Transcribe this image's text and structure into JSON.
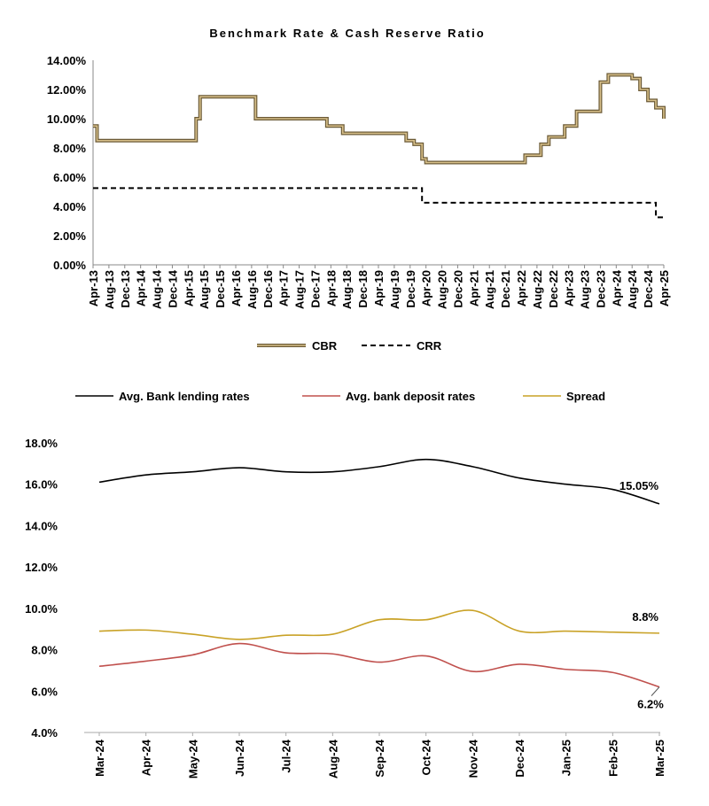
{
  "chart_data": [
    {
      "type": "line",
      "title": "Benchmark Rate & Cash Reserve Ratio",
      "y_ticks": [
        "0.00%",
        "2.00%",
        "4.00%",
        "6.00%",
        "8.00%",
        "10.00%",
        "12.00%",
        "14.00%"
      ],
      "ylim": [
        0,
        14
      ],
      "x_ticks": [
        "Apr-13",
        "Aug-13",
        "Dec-13",
        "Apr-14",
        "Aug-14",
        "Dec-14",
        "Apr-15",
        "Aug-15",
        "Dec-15",
        "Apr-16",
        "Aug-16",
        "Dec-16",
        "Apr-17",
        "Aug-17",
        "Dec-17",
        "Apr-18",
        "Aug-18",
        "Dec-18",
        "Apr-19",
        "Aug-19",
        "Dec-19",
        "Apr-20",
        "Aug-20",
        "Dec-20",
        "Apr-21",
        "Aug-21",
        "Dec-21",
        "Apr-22",
        "Aug-22",
        "Dec-22",
        "Apr-23",
        "Aug-23",
        "Dec-23",
        "Apr-24",
        "Aug-24",
        "Dec-24",
        "Apr-25"
      ],
      "legend_position": "bottom",
      "series": [
        {
          "name": "CBR",
          "color": "#a08654",
          "style": "solid",
          "steps": [
            [
              "2013-04",
              9.5
            ],
            [
              "2013-05",
              8.5
            ],
            [
              "2015-06",
              10.0
            ],
            [
              "2015-07",
              11.5
            ],
            [
              "2016-09",
              10.0
            ],
            [
              "2018-03",
              9.5
            ],
            [
              "2018-07",
              9.0
            ],
            [
              "2019-11",
              8.5
            ],
            [
              "2020-01",
              8.25
            ],
            [
              "2020-03",
              7.25
            ],
            [
              "2020-04",
              7.0
            ],
            [
              "2022-05",
              7.5
            ],
            [
              "2022-09",
              8.25
            ],
            [
              "2022-11",
              8.75
            ],
            [
              "2023-03",
              9.5
            ],
            [
              "2023-06",
              10.5
            ],
            [
              "2023-12",
              12.5
            ],
            [
              "2024-02",
              13.0
            ],
            [
              "2024-08",
              12.75
            ],
            [
              "2024-10",
              12.0
            ],
            [
              "2024-12",
              11.25
            ],
            [
              "2025-02",
              10.75
            ],
            [
              "2025-04",
              10.0
            ]
          ],
          "end": "2025-04"
        },
        {
          "name": "CRR",
          "color": "#000000",
          "style": "dashed",
          "steps": [
            [
              "2013-04",
              5.25
            ],
            [
              "2020-03",
              4.25
            ],
            [
              "2025-02",
              3.25
            ]
          ],
          "end": "2025-04"
        }
      ]
    },
    {
      "type": "line",
      "categories": [
        "Mar-24",
        "Apr-24",
        "May-24",
        "Jun-24",
        "Jul-24",
        "Aug-24",
        "Sep-24",
        "Oct-24",
        "Nov-24",
        "Dec-24",
        "Jan-25",
        "Feb-25",
        "Mar-25"
      ],
      "y_ticks": [
        "4.0%",
        "6.0%",
        "8.0%",
        "10.0%",
        "12.0%",
        "14.0%",
        "16.0%",
        "18.0%"
      ],
      "ylim": [
        4,
        18
      ],
      "legend_position": "top",
      "series": [
        {
          "name": "Avg. Bank lending rates",
          "color": "#000000",
          "values": [
            16.1,
            16.45,
            16.6,
            16.8,
            16.6,
            16.6,
            16.85,
            17.2,
            16.85,
            16.3,
            16.0,
            15.75,
            15.05
          ],
          "end_label": "15.05%"
        },
        {
          "name": "Avg. bank deposit rates",
          "color": "#c0504d",
          "values": [
            7.2,
            7.45,
            7.75,
            8.3,
            7.85,
            7.8,
            7.4,
            7.7,
            6.95,
            7.3,
            7.05,
            6.9,
            6.2
          ],
          "end_label": "6.2%"
        },
        {
          "name": "Spread",
          "color": "#c9a227",
          "values": [
            8.9,
            8.95,
            8.75,
            8.5,
            8.7,
            8.75,
            9.45,
            9.45,
            9.9,
            8.9,
            8.9,
            8.85,
            8.8
          ],
          "end_label": "8.8%"
        }
      ]
    }
  ]
}
